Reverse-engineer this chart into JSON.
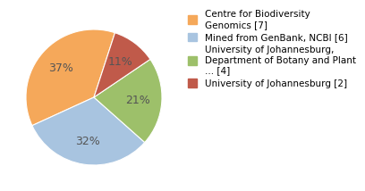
{
  "labels": [
    "Centre for Biodiversity\nGenomics [7]",
    "Mined from GenBank, NCBI [6]",
    "University of Johannesburg,\nDepartment of Botany and Plant\n... [4]",
    "University of Johannesburg [2]"
  ],
  "values": [
    7,
    6,
    4,
    2
  ],
  "colors": [
    "#f5a85a",
    "#a8c4e0",
    "#9dc06a",
    "#c05a4a"
  ],
  "background_color": "#ffffff",
  "autopct_fontsize": 9,
  "legend_fontsize": 7.5,
  "pct_text_color": "#555555",
  "startangle": 72
}
